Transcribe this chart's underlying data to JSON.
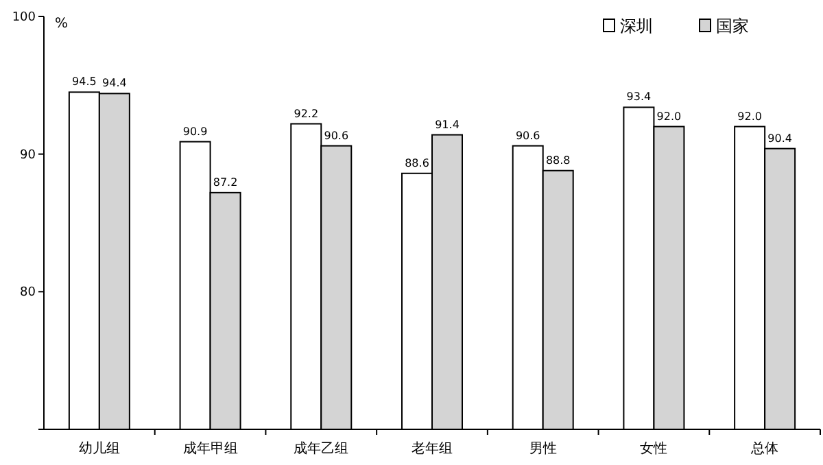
{
  "chart_data": {
    "type": "bar",
    "ylabel": "%",
    "categories": [
      "幼儿组",
      "成年甲组",
      "成年乙组",
      "老年组",
      "男性",
      "女性",
      "总体"
    ],
    "series": [
      {
        "name": "深圳",
        "color": "#ffffff",
        "values": [
          94.5,
          90.9,
          92.2,
          88.6,
          90.6,
          93.4,
          92.0
        ],
        "value_labels": [
          "94.5",
          "90.9",
          "92.2",
          "88.6",
          "90.6",
          "93.4",
          "92.0"
        ]
      },
      {
        "name": "国家",
        "color": "#d4d4d4",
        "values": [
          94.4,
          87.2,
          90.6,
          91.4,
          88.8,
          92.0,
          90.4
        ],
        "value_labels": [
          "94.4",
          "87.2",
          "90.6",
          "91.4",
          "88.8",
          "92.0",
          "90.4"
        ]
      }
    ],
    "ylim": [
      70,
      100
    ],
    "yticks": [
      {
        "value": 70,
        "label": null
      },
      80,
      90,
      100
    ],
    "grid": false,
    "legend": "top right"
  }
}
